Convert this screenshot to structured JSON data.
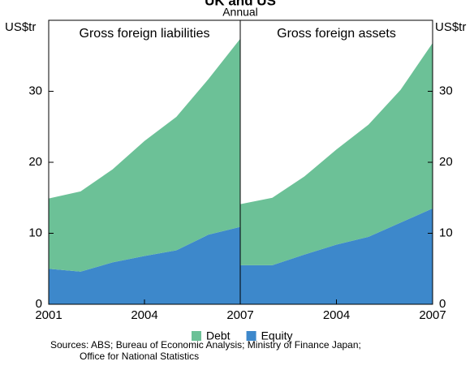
{
  "chart_data": {
    "type": "area",
    "title": "UK and US",
    "subtitle": "Annual",
    "y_label": "US$tr",
    "x": [
      2001,
      2002,
      2003,
      2004,
      2005,
      2006,
      2007
    ],
    "xlim": [
      2001,
      2007
    ],
    "ylim": [
      0,
      40
    ],
    "yticks": [
      0,
      10,
      20,
      30
    ],
    "series": [
      {
        "name": "Debt",
        "color": "#6cc197"
      },
      {
        "name": "Equity",
        "color": "#3d88cb"
      }
    ],
    "panels": [
      {
        "title": "Gross foreign liabilities",
        "xticks": [
          2001,
          2004,
          2007
        ],
        "series": [
          {
            "values": [
              9.9,
              11.3,
              13.1,
              16.2,
              18.8,
              21.9,
              26.5
            ]
          },
          {
            "values": [
              5.0,
              4.6,
              5.9,
              6.8,
              7.6,
              9.8,
              10.9
            ]
          }
        ]
      },
      {
        "title": "Gross foreign assets",
        "xticks": [
          2004,
          2007
        ],
        "series": [
          {
            "values": [
              8.6,
              9.5,
              11.0,
              13.4,
              15.8,
              18.7,
              23.3
            ]
          },
          {
            "values": [
              5.5,
              5.5,
              7.0,
              8.4,
              9.5,
              11.5,
              13.5
            ]
          }
        ]
      }
    ],
    "source": [
      "Sources: ABS; Bureau of Economic Analysis; Ministry of Finance Japan;",
      "Office for National Statistics"
    ]
  }
}
